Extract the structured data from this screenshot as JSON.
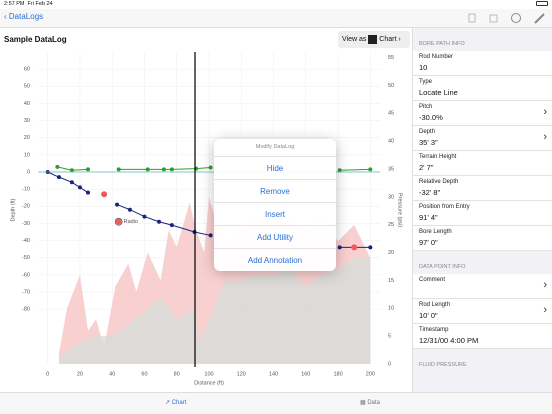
{
  "status_bar": {
    "time": "2:57 PM",
    "date": "Fri Feb 24"
  },
  "nav": {
    "back": "DataLogs"
  },
  "header": {
    "title": "Sample DataLog",
    "view_as": "View as",
    "view_mode": "Chart"
  },
  "chart_data": {
    "type": "line",
    "xlabel": "Distance (ft)",
    "ylabel": "Depth (ft)",
    "y2label": "Pressure (psi)",
    "xlim": [
      -6,
      206
    ],
    "xticks": [
      0,
      20,
      40,
      60,
      80,
      100,
      120,
      140,
      160,
      180,
      200
    ],
    "ylim": [
      -112,
      70
    ],
    "yticks": [
      60,
      50,
      40,
      30,
      20,
      10,
      0,
      -10,
      -20,
      -30,
      -40,
      -50,
      -60,
      -70,
      -80
    ],
    "y2lim": [
      0,
      56
    ],
    "y2ticks": [
      0,
      5,
      10,
      15,
      20,
      25,
      30,
      35,
      40,
      45,
      50,
      55
    ],
    "cursor_x": 91.33,
    "series": [
      {
        "type": "area",
        "axis": "y2",
        "color": "#f8c4c4",
        "x": [
          7,
          12,
          20,
          25,
          30,
          35,
          42,
          50,
          55,
          62,
          70,
          75,
          80,
          88,
          92,
          97,
          100,
          105,
          110,
          120,
          130,
          140,
          150,
          160,
          170,
          180,
          190,
          200
        ],
        "values": [
          2,
          10,
          16,
          6,
          8,
          3,
          14,
          18,
          13,
          20,
          15,
          24,
          21,
          29,
          24,
          20,
          30,
          25,
          22,
          24,
          27,
          25,
          26,
          24,
          26,
          22,
          25,
          19
        ]
      },
      {
        "type": "area",
        "axis": "y2",
        "color": "#d6dcda",
        "x": [
          7,
          20,
          30,
          40,
          50,
          62,
          70,
          80,
          90,
          95,
          100,
          110,
          120,
          130,
          140,
          150,
          160,
          170,
          180,
          190,
          200
        ],
        "values": [
          1,
          4,
          5,
          5,
          7,
          10,
          12,
          8,
          10,
          4,
          8,
          15,
          15,
          16,
          16,
          17,
          14,
          16,
          17,
          19,
          19
        ]
      },
      {
        "type": "line",
        "color": "#1a237e",
        "x": [
          0,
          7,
          15,
          20,
          25,
          null,
          43,
          51,
          60,
          69,
          77,
          91,
          101,
          null,
          181,
          200
        ],
        "values": [
          0,
          -3,
          -6,
          -9,
          -12,
          null,
          -19,
          -22,
          -26,
          -29,
          -31,
          -35,
          -37,
          null,
          -44,
          -44
        ]
      },
      {
        "type": "line",
        "color": "#2e9e2e",
        "x": [
          6,
          15,
          25,
          null,
          44,
          62,
          72,
          77,
          92,
          101,
          null,
          181,
          200
        ],
        "values": [
          3,
          1,
          1.5,
          null,
          1.5,
          1.5,
          1.5,
          1.5,
          2,
          2.6,
          null,
          1,
          1.5
        ]
      },
      {
        "type": "scatter",
        "color": "#f05a5a",
        "x": [
          35,
          44,
          190
        ],
        "values": [
          -13,
          -29,
          -44
        ]
      }
    ],
    "annotations": [
      {
        "x": 44,
        "y": -29,
        "text": "Radio"
      }
    ]
  },
  "menu": {
    "title": "Modify DataLog",
    "items": [
      "Hide",
      "Remove",
      "Insert",
      "Add Utility",
      "Add Annotation"
    ]
  },
  "panel": {
    "sections": [
      {
        "header": "BORE PATH INFO",
        "items": [
          {
            "label": "Rod Number",
            "value": "10"
          },
          {
            "label": "Type",
            "value": "Locate Line"
          },
          {
            "label": "Pitch",
            "value": "-30.0%"
          },
          {
            "label": "Depth",
            "value": "35' 3\""
          },
          {
            "label": "Terrain Height",
            "value": "2' 7\""
          },
          {
            "label": "Relative Depth",
            "value": "-32' 8\""
          },
          {
            "label": "Position from Entry",
            "value": "91' 4\""
          },
          {
            "label": "Bore Length",
            "value": "97' 0\""
          }
        ]
      },
      {
        "header": "DATA POINT INFO",
        "items": [
          {
            "label": "Comment"
          },
          {
            "label": "Rod Length",
            "value": "10' 0\""
          },
          {
            "label": "Timestamp",
            "value": "12/31/00 4:00 PM"
          }
        ]
      },
      {
        "header": "FLUID PRESSURE",
        "items": []
      }
    ]
  },
  "tabs": [
    "Chart",
    "Data"
  ]
}
